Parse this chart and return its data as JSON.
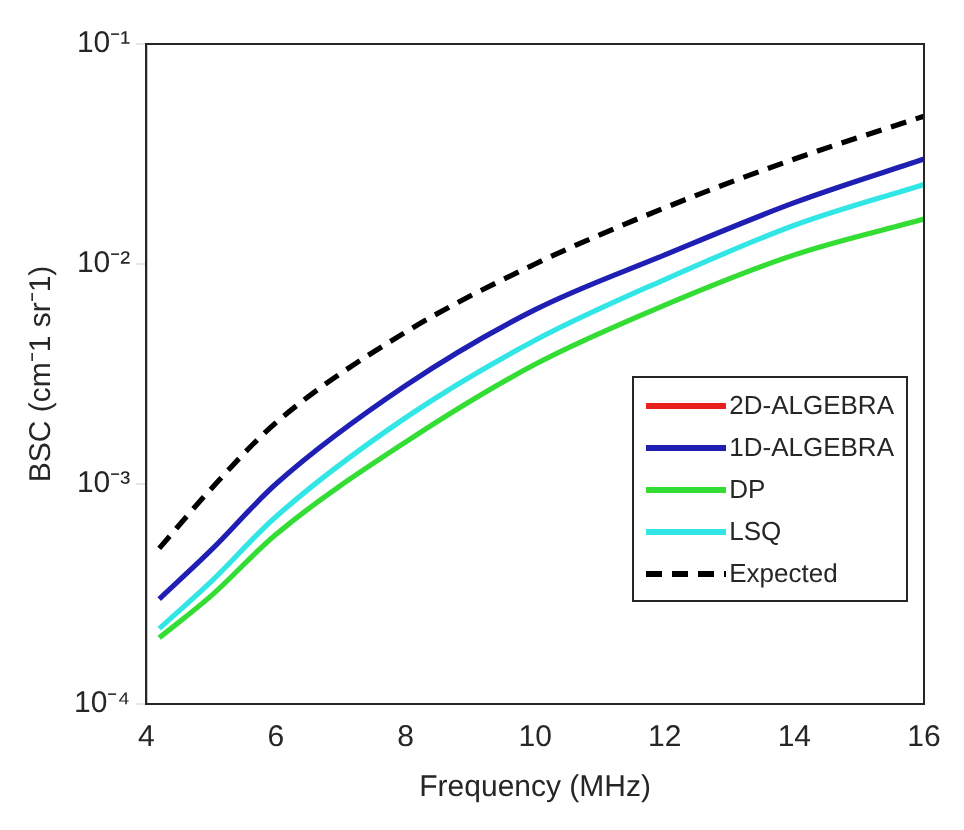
{
  "chart_data": {
    "type": "line",
    "xlabel": "Frequency (MHz)",
    "ylabel": "BSC (cm⁻1 sr⁻1)",
    "x": [
      4.2,
      5,
      6,
      8,
      10,
      12,
      14,
      16
    ],
    "series": [
      {
        "name": "2D-ALGEBRA",
        "color": "#e8211c",
        "values": [
          null,
          null,
          null,
          null,
          null,
          null,
          null,
          null
        ]
      },
      {
        "name": "1D-ALGEBRA",
        "color": "#1f1fb4",
        "values": [
          0.0003,
          0.0005,
          0.001,
          0.0028,
          0.0062,
          0.011,
          0.019,
          0.03
        ]
      },
      {
        "name": "DP",
        "color": "#33dd33",
        "values": [
          0.0002,
          0.00031,
          0.00059,
          0.00155,
          0.0035,
          0.0065,
          0.011,
          0.016
        ]
      },
      {
        "name": "LSQ",
        "color": "#33e6e6",
        "values": [
          0.00022,
          0.00036,
          0.00071,
          0.002,
          0.0045,
          0.0085,
          0.015,
          0.023
        ]
      },
      {
        "name": "Expected",
        "color": "#000000",
        "line_style": "dashed",
        "values": [
          0.00051,
          0.00095,
          0.0019,
          0.0049,
          0.01,
          0.018,
          0.03,
          0.047
        ]
      }
    ],
    "xlim": [
      4,
      16
    ],
    "xticks": [
      4,
      6,
      8,
      10,
      12,
      14,
      16
    ],
    "ylim": [
      0.0001,
      0.1
    ],
    "yticks": [
      {
        "value": 0.0001,
        "label": "10⁻⁴"
      },
      {
        "value": 0.001,
        "label": "10⁻³"
      },
      {
        "value": 0.01,
        "label": "10⁻²"
      },
      {
        "value": 0.1,
        "label": "10⁻¹"
      }
    ],
    "log": "y",
    "grid": false,
    "legend": "right",
    "marker": "none"
  }
}
